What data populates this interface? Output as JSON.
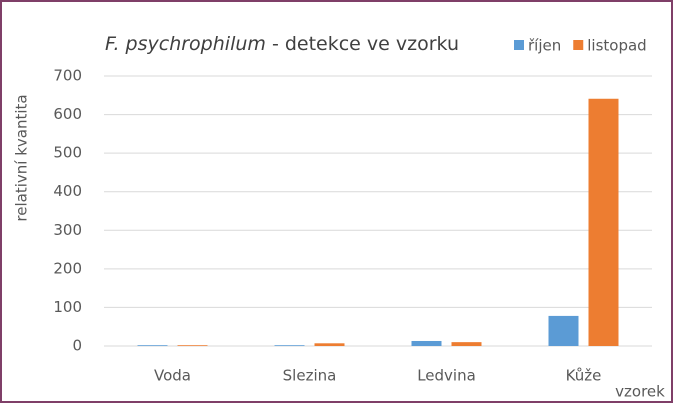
{
  "chart_data": {
    "type": "bar",
    "title": [
      "F. psychrophilum",
      " - detekce ve vzorku"
    ],
    "x_label": "vzorek",
    "y_label": "relativní kvantita",
    "categories": [
      "Voda",
      "Slezina",
      "Ledvina",
      "Kůže"
    ],
    "series": [
      {
        "name": "říjen",
        "color": "#5b9bd5",
        "values": [
          2,
          2,
          13,
          78
        ]
      },
      {
        "name": "listopad",
        "color": "#ed7d31",
        "values": [
          2,
          7,
          10,
          641
        ]
      }
    ],
    "ylim": [
      0,
      700
    ],
    "yticks": [
      0,
      100,
      200,
      300,
      400,
      500,
      600,
      700
    ],
    "grid": true
  }
}
